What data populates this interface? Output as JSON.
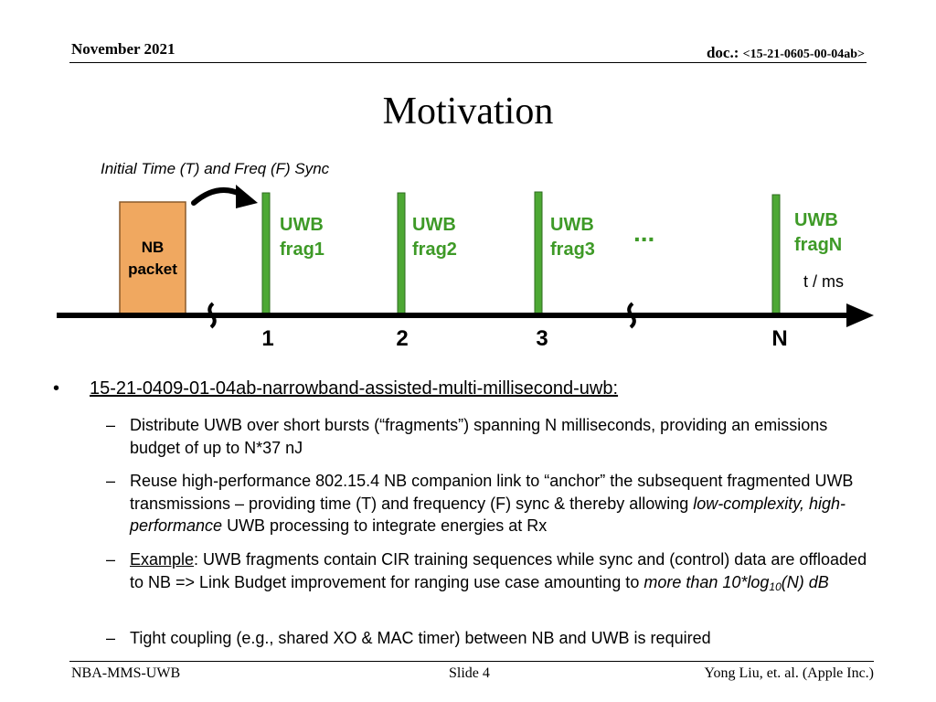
{
  "header": {
    "date": "November 2021",
    "doc_prefix": "doc.: ",
    "doc_number": "<15-21-0605-00-04ab>"
  },
  "title": "Motivation",
  "diagram": {
    "caption": "Initial Time (T) and Freq (F) Sync",
    "nb_packet": [
      "NB",
      "packet"
    ],
    "fragments": [
      {
        "line1": "UWB",
        "line2": "frag1",
        "tick": "1"
      },
      {
        "line1": "UWB",
        "line2": "frag2",
        "tick": "2"
      },
      {
        "line1": "UWB",
        "line2": "frag3",
        "tick": "3"
      },
      {
        "line1": "UWB",
        "line2": "fragN",
        "tick": "N"
      }
    ],
    "ellipsis": "...",
    "axis_label": "t / ms",
    "colors": {
      "nb_fill": "#F0A860",
      "nb_stroke": "#8A5A2B",
      "frag_fill": "#4DA834",
      "frag_text": "#3E9A27",
      "axis": "#000000"
    }
  },
  "bullets": {
    "bullet_char": "•",
    "main_link": "15-21-0409-01-04ab-narrowband-assisted-multi-millisecond-uwb:",
    "dash": "–",
    "s1": "Distribute UWB over short bursts (“fragments”) spanning N milliseconds, providing an emissions budget of up to N*37 nJ",
    "s2_a": "Reuse high-performance 802.15.4 NB companion link to “anchor” the subsequent fragmented UWB transmissions – providing time (T) and frequency (F) sync & thereby allowing ",
    "s2_b": "low-complexity, high-performance",
    "s2_c": " UWB processing to integrate energies at Rx",
    "s3_label": "Example",
    "s3_a": ": UWB fragments contain CIR training sequences while sync and (control) data are offloaded to NB => Link Budget improvement for ranging use case amounting to ",
    "s3_b": "more than 10*log",
    "s3_sub": "10",
    "s3_c": "(N) dB",
    "s4": "Tight coupling (e.g., shared XO & MAC timer) between NB and UWB is required"
  },
  "footer": {
    "left": "NBA-MMS-UWB",
    "center": "Slide 4",
    "right": "Yong Liu, et. al. (Apple Inc.)"
  }
}
